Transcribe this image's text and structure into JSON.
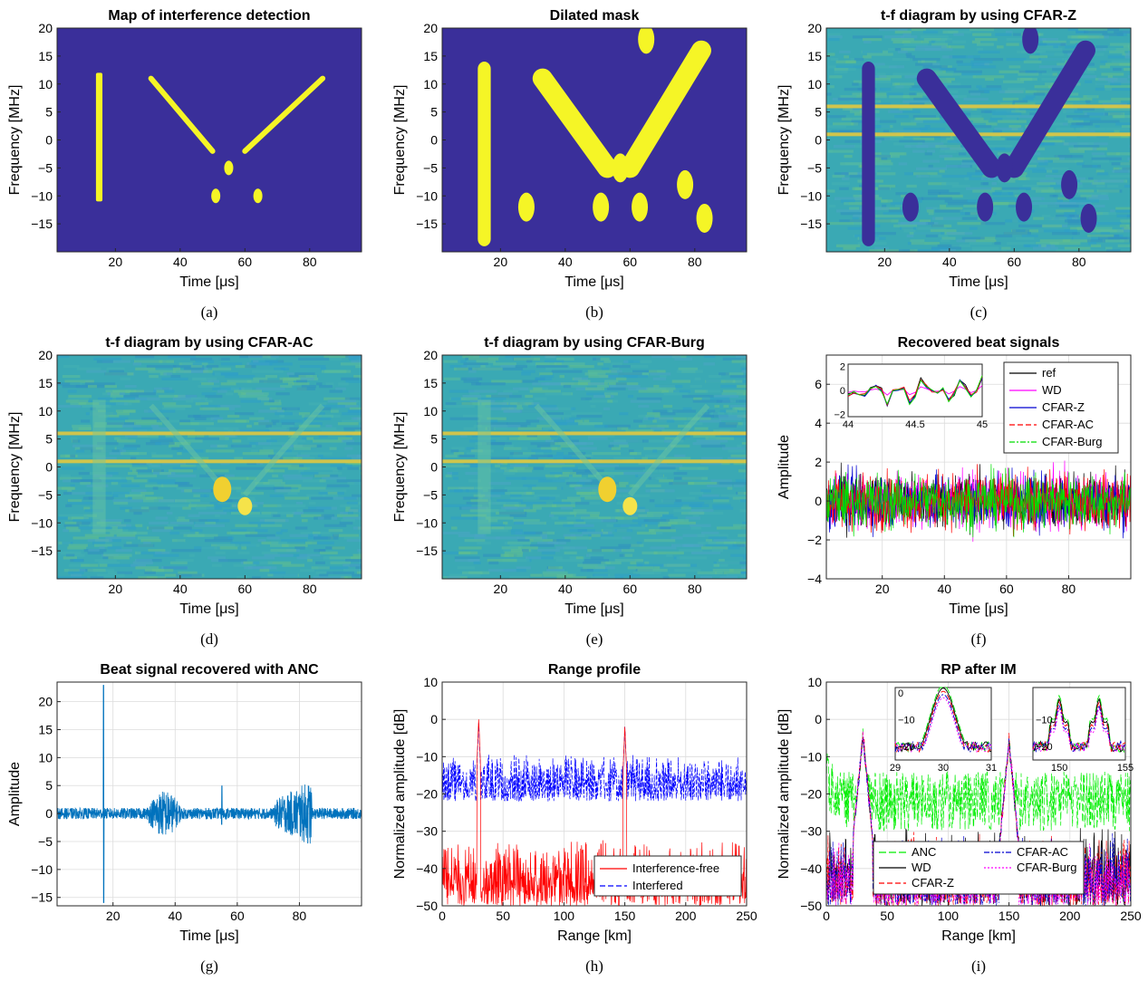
{
  "colors": {
    "background": "#3a2f9a",
    "mask": "#f5f526",
    "tf_base": "#3aa9b4",
    "tf_line": "#e0c840",
    "ref": "#000000",
    "wd": "#ff00ff",
    "cfar_z": "#0000d0",
    "cfar_ac": "#ff0000",
    "cfar_burg": "#00dd00",
    "anc_signal": "#0072bd",
    "interference_free": "#ff0000",
    "interfered": "#0000ff",
    "anc": "#00ee00"
  },
  "panels": [
    {
      "id": "a",
      "title": "Map of interference detection",
      "caption": "(a)",
      "xlabel": "Time [μs]",
      "ylabel": "Frequency [MHz]"
    },
    {
      "id": "b",
      "title": "Dilated mask",
      "caption": "(b)",
      "xlabel": "Time [μs]",
      "ylabel": "Frequency [MHz]"
    },
    {
      "id": "c",
      "title": "t-f diagram by using CFAR-Z",
      "caption": "(c)",
      "xlabel": "Time [μs]",
      "ylabel": "Frequency [MHz]"
    },
    {
      "id": "d",
      "title": "t-f diagram by using CFAR-AC",
      "caption": "(d)",
      "xlabel": "Time [μs]",
      "ylabel": "Frequency [MHz]"
    },
    {
      "id": "e",
      "title": "t-f diagram by using CFAR-Burg",
      "caption": "(e)",
      "xlabel": "Time [μs]",
      "ylabel": "Frequency [MHz]"
    },
    {
      "id": "f",
      "title": "Recovered beat signals",
      "caption": "(f)",
      "xlabel": "Time [μs]",
      "ylabel": "Amplitude"
    },
    {
      "id": "g",
      "title": "Beat signal recovered with ANC",
      "caption": "(g)",
      "xlabel": "Time [μs]",
      "ylabel": "Amplitude"
    },
    {
      "id": "h",
      "title": "Range profile",
      "caption": "(h)",
      "xlabel": "Range [km]",
      "ylabel": "Normalized amplitude [dB]"
    },
    {
      "id": "i",
      "title": "RP after IM",
      "caption": "(i)",
      "xlabel": "Range [km]",
      "ylabel": "Normalized amplitude [dB]"
    }
  ],
  "chart_data": [
    {
      "id": "a",
      "type": "heatmap",
      "title": "Map of interference detection",
      "xlim": [
        2,
        96
      ],
      "ylim": [
        -20,
        20
      ],
      "xticks": [
        20,
        40,
        60,
        80
      ],
      "yticks": [
        -15,
        -10,
        -5,
        0,
        5,
        10,
        15,
        20
      ],
      "regions": [
        {
          "kind": "band",
          "x": [
            14,
            16
          ],
          "y": [
            -11,
            12
          ]
        },
        {
          "kind": "diagonal",
          "from": [
            31,
            11
          ],
          "to": [
            50,
            -2
          ]
        },
        {
          "kind": "diagonal",
          "from": [
            84,
            11
          ],
          "to": [
            60,
            -2
          ]
        },
        {
          "kind": "blob",
          "center": [
            55,
            -5
          ]
        },
        {
          "kind": "blob",
          "center": [
            51,
            -10
          ]
        },
        {
          "kind": "blob",
          "center": [
            64,
            -10
          ]
        }
      ]
    },
    {
      "id": "b",
      "type": "heatmap",
      "title": "Dilated mask",
      "xlim": [
        2,
        96
      ],
      "ylim": [
        -20,
        20
      ],
      "xticks": [
        20,
        40,
        60,
        80
      ],
      "yticks": [
        -15,
        -10,
        -5,
        0,
        5,
        10,
        15,
        20
      ],
      "regions": [
        {
          "kind": "band",
          "x": [
            13,
            17
          ],
          "y": [
            -19,
            14
          ]
        },
        {
          "kind": "diagonal",
          "from": [
            33,
            11
          ],
          "to": [
            53,
            -5
          ]
        },
        {
          "kind": "diagonal",
          "from": [
            82,
            16
          ],
          "to": [
            60,
            -5
          ]
        },
        {
          "kind": "blob",
          "center": [
            57,
            -5
          ]
        },
        {
          "kind": "blob",
          "center": [
            51,
            -12
          ]
        },
        {
          "kind": "blob",
          "center": [
            63,
            -12
          ]
        },
        {
          "kind": "blob",
          "center": [
            28,
            -12
          ]
        },
        {
          "kind": "blob",
          "center": [
            77,
            -8
          ]
        },
        {
          "kind": "blob",
          "center": [
            83,
            -14
          ]
        },
        {
          "kind": "blob",
          "center": [
            65,
            18
          ]
        }
      ]
    },
    {
      "id": "c",
      "type": "heatmap",
      "title": "t-f diagram by using CFAR-Z",
      "xlim": [
        2,
        96
      ],
      "ylim": [
        -20,
        20
      ],
      "xticks": [
        20,
        40,
        60,
        80
      ],
      "yticks": [
        -15,
        -10,
        -5,
        0,
        5,
        10,
        15,
        20
      ],
      "lines_MHz": [
        6,
        1
      ]
    },
    {
      "id": "d",
      "type": "heatmap",
      "title": "t-f diagram by using CFAR-AC",
      "xlim": [
        2,
        96
      ],
      "ylim": [
        -20,
        20
      ],
      "xticks": [
        20,
        40,
        60,
        80
      ],
      "yticks": [
        -15,
        -10,
        -5,
        0,
        5,
        10,
        15,
        20
      ],
      "lines_MHz": [
        6,
        1
      ]
    },
    {
      "id": "e",
      "type": "heatmap",
      "title": "t-f diagram by using CFAR-Burg",
      "xlim": [
        2,
        96
      ],
      "ylim": [
        -20,
        20
      ],
      "xticks": [
        20,
        40,
        60,
        80
      ],
      "yticks": [
        -15,
        -10,
        -5,
        0,
        5,
        10,
        15,
        20
      ],
      "lines_MHz": [
        6,
        1
      ]
    },
    {
      "id": "f",
      "type": "line",
      "title": "Recovered beat signals",
      "xlim": [
        2,
        100
      ],
      "ylim": [
        -4,
        7.5
      ],
      "xticks": [
        20,
        40,
        60,
        80
      ],
      "yticks": [
        -4,
        -2,
        0,
        2,
        4,
        6
      ],
      "legend": [
        "ref",
        "WD",
        "CFAR-Z",
        "CFAR-AC",
        "CFAR-Burg"
      ],
      "series": [
        {
          "name": "ref",
          "amplitude_range": [
            -3,
            3
          ]
        },
        {
          "name": "WD",
          "amplitude_range": [
            -2.5,
            2.5
          ]
        },
        {
          "name": "CFAR-Z",
          "amplitude_range": [
            -2.5,
            2.5
          ]
        },
        {
          "name": "CFAR-AC",
          "amplitude_range": [
            -2.5,
            2.5
          ]
        },
        {
          "name": "CFAR-Burg",
          "amplitude_range": [
            -3,
            3
          ]
        }
      ],
      "inset": {
        "xlim": [
          44,
          45
        ],
        "ylim": [
          -2.2,
          2.2
        ],
        "xticks": [
          44,
          44.5,
          45
        ],
        "xtick_labels": [
          "44",
          "44.5",
          "45"
        ],
        "yticks": [
          -2,
          0,
          2
        ]
      }
    },
    {
      "id": "g",
      "type": "line",
      "title": "Beat signal recovered with ANC",
      "xlim": [
        2,
        100
      ],
      "ylim": [
        -16.5,
        23.5
      ],
      "xticks": [
        20,
        40,
        60,
        80
      ],
      "yticks": [
        -15,
        -10,
        -5,
        0,
        5,
        10,
        15,
        20
      ],
      "series": [
        {
          "name": "ANC",
          "baseline_amplitude": 1,
          "features": [
            {
              "t": 17,
              "peak": 23,
              "trough": -16
            },
            {
              "t": 55,
              "peak": 5,
              "trough": -2
            },
            {
              "burst_t": [
                31,
                42
              ],
              "amplitude": 3
            },
            {
              "burst_t": [
                72,
                84
              ],
              "amplitude": 6
            }
          ]
        }
      ]
    },
    {
      "id": "h",
      "type": "line",
      "title": "Range profile",
      "xlim": [
        0,
        250
      ],
      "ylim": [
        -50,
        10
      ],
      "xticks": [
        0,
        50,
        100,
        150,
        200,
        250
      ],
      "yticks": [
        -50,
        -40,
        -30,
        -20,
        -10,
        0,
        10
      ],
      "legend": [
        "Interference-free",
        "Interfered"
      ],
      "series": [
        {
          "name": "Interference-free",
          "noise_floor_dB": [
            -50,
            -32
          ],
          "peaks": [
            {
              "range": 30,
              "value": 0
            },
            {
              "range": 150,
              "value": -2
            }
          ]
        },
        {
          "name": "Interfered",
          "noise_floor_dB": [
            -22,
            -9
          ],
          "peaks": [
            {
              "range": 30,
              "value": -1
            },
            {
              "range": 150,
              "value": -2
            }
          ]
        }
      ]
    },
    {
      "id": "i",
      "type": "line",
      "title": "RP after IM",
      "xlim": [
        0,
        250
      ],
      "ylim": [
        -50,
        10
      ],
      "xticks": [
        0,
        50,
        100,
        150,
        200,
        250
      ],
      "yticks": [
        -50,
        -40,
        -30,
        -20,
        -10,
        0,
        10
      ],
      "legend": [
        "ANC",
        "WD",
        "CFAR-Z",
        "CFAR-AC",
        "CFAR-Burg"
      ],
      "series": [
        {
          "name": "ANC",
          "noise_floor_dB": [
            -30,
            -14
          ]
        },
        {
          "name": "WD",
          "noise_floor_dB": [
            -50,
            -28
          ]
        },
        {
          "name": "CFAR-Z",
          "noise_floor_dB": [
            -50,
            -30
          ]
        },
        {
          "name": "CFAR-AC",
          "noise_floor_dB": [
            -50,
            -30
          ]
        },
        {
          "name": "CFAR-Burg",
          "noise_floor_dB": [
            -50,
            -32
          ]
        }
      ],
      "peaks": [
        {
          "range": 30,
          "value": -4
        },
        {
          "range": 150,
          "value": -6
        }
      ],
      "insets": [
        {
          "xlim": [
            29,
            31
          ],
          "ylim": [
            -25,
            2
          ],
          "xticks": [
            29,
            30,
            31
          ],
          "yticks": [
            -20,
            -10,
            0
          ]
        },
        {
          "xlim": [
            148,
            155
          ],
          "ylim": [
            -25,
            2
          ],
          "xticks": [
            150,
            155
          ],
          "yticks": [
            -20,
            -10
          ]
        }
      ]
    }
  ]
}
